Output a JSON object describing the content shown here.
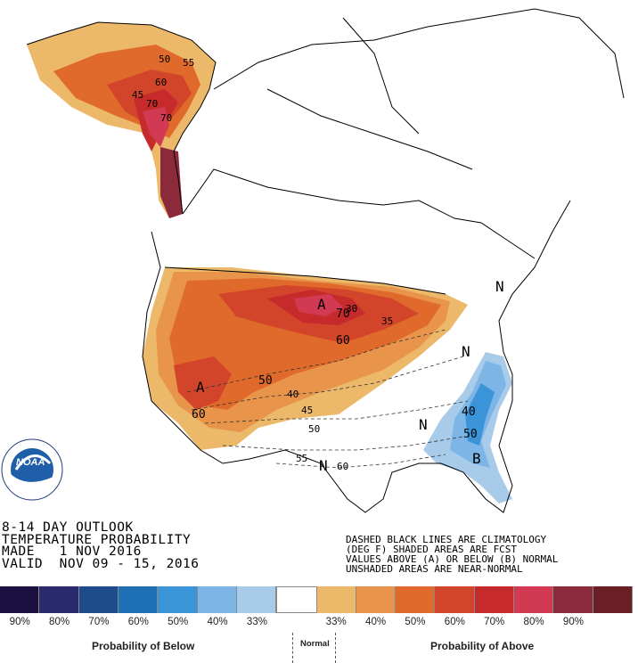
{
  "outlook": {
    "title": "8-14 DAY OUTLOOK",
    "subtitle": "TEMPERATURE PROBABILITY",
    "made": "MADE   1 NOV 2016",
    "valid": "VALID  NOV 09 - 15, 2016"
  },
  "notes": [
    "DASHED BLACK LINES ARE CLIMATOLOGY",
    "(DEG F) SHADED AREAS ARE FCST",
    "VALUES ABOVE (A) OR BELOW (B) NORMAL",
    "UNSHADED AREAS ARE NEAR-NORMAL"
  ],
  "noaa_logo": {
    "text": "NOAA",
    "ring_text": "NATIONAL OCEANIC AND ATMOSPHERIC ADMINISTRATION · U.S. DEPARTMENT OF COMMERCE"
  },
  "map_labels": {
    "category_letters": [
      "A",
      "A",
      "B",
      "N",
      "N",
      "N",
      "N"
    ],
    "alaska_contours": [
      "50",
      "55",
      "60",
      "70",
      "70",
      "45"
    ],
    "conus_contours": [
      "30",
      "35",
      "40",
      "45",
      "50",
      "50",
      "55",
      "60",
      "60",
      "60",
      "70",
      "40",
      "50"
    ]
  },
  "legend": {
    "swatches": [
      {
        "label": "90%",
        "color": "#1b1040"
      },
      {
        "label": "80%",
        "color": "#2a2a6c"
      },
      {
        "label": "70%",
        "color": "#1e4b8c"
      },
      {
        "label": "60%",
        "color": "#1f6fb4"
      },
      {
        "label": "50%",
        "color": "#3a94d7"
      },
      {
        "label": "40%",
        "color": "#7db6e6"
      },
      {
        "label": "33%",
        "color": "#a9cbea"
      },
      {
        "label": "",
        "color": "#ffffff"
      },
      {
        "label": "33%",
        "color": "#ecb86a"
      },
      {
        "label": "40%",
        "color": "#e8954b"
      },
      {
        "label": "50%",
        "color": "#e06a2c"
      },
      {
        "label": "60%",
        "color": "#d3452a"
      },
      {
        "label": "70%",
        "color": "#c62a2a"
      },
      {
        "label": "80%",
        "color": "#d13a52"
      },
      {
        "label": "90%",
        "color": "#8b2a3a"
      }
    ],
    "extra_swatch_color": "#6a1f24",
    "below_label": "Probability of Below",
    "normal_label": "Normal",
    "above_label": "Probability of Above"
  }
}
